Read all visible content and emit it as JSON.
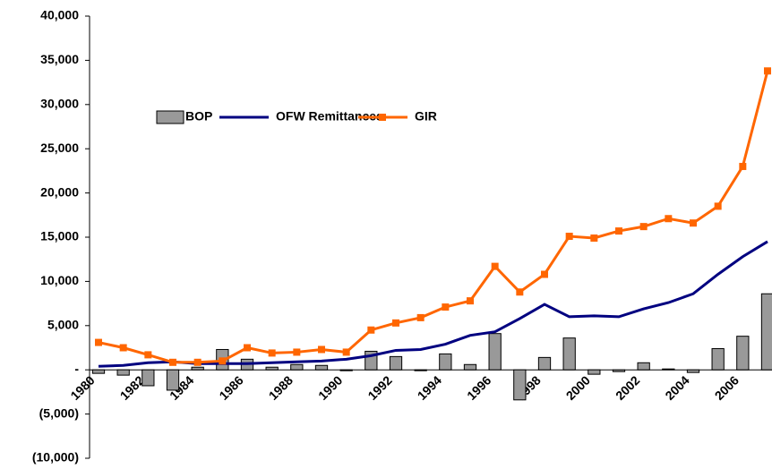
{
  "chart_data": {
    "type": "bar-line",
    "categories": [
      "1980",
      null,
      "1982",
      null,
      "1984",
      null,
      "1986",
      null,
      "1988",
      null,
      "1990",
      null,
      "1992",
      null,
      "1994",
      null,
      "1996",
      null,
      "1998",
      null,
      "2000",
      null,
      "2002",
      null,
      "2004",
      null,
      "2006",
      null
    ],
    "series": [
      {
        "name": "BOP",
        "type": "bar",
        "color": "#999999",
        "values": [
          -400,
          -600,
          -1800,
          -2300,
          300,
          2300,
          1200,
          300,
          600,
          500,
          -100,
          2100,
          1500,
          -100,
          1800,
          600,
          4100,
          -3400,
          1400,
          3600,
          -500,
          -200,
          800,
          100,
          -300,
          2400,
          3800,
          8600
        ]
      },
      {
        "name": "OFW Remittances",
        "type": "line",
        "color": "#000080",
        "values": [
          400,
          500,
          800,
          900,
          700,
          700,
          700,
          800,
          900,
          1000,
          1200,
          1600,
          2200,
          2300,
          2900,
          3900,
          4300,
          5800,
          7400,
          6000,
          6100,
          6000,
          6900,
          7600,
          8600,
          10800,
          12800,
          14500
        ]
      },
      {
        "name": "GIR",
        "type": "line",
        "color": "#ff6600",
        "marker": "square",
        "values": [
          3100,
          2500,
          1700,
          850,
          850,
          1000,
          2500,
          1900,
          2000,
          2300,
          2000,
          4500,
          5300,
          5900,
          7100,
          7800,
          11700,
          8800,
          10800,
          15100,
          14900,
          15700,
          16200,
          17100,
          16600,
          18500,
          23000,
          33800
        ]
      }
    ],
    "ylim": [
      -10000,
      40000
    ],
    "yticks": [
      {
        "value": -10000,
        "label": "(10,000)"
      },
      {
        "value": -5000,
        "label": "(5,000)"
      },
      {
        "value": 0,
        "label": "-"
      },
      {
        "value": 5000,
        "label": "5,000"
      },
      {
        "value": 10000,
        "label": "10,000"
      },
      {
        "value": 15000,
        "label": "15,000"
      },
      {
        "value": 20000,
        "label": "20,000"
      },
      {
        "value": 25000,
        "label": "25,000"
      },
      {
        "value": 30000,
        "label": "30,000"
      },
      {
        "value": 35000,
        "label": "35,000"
      },
      {
        "value": 40000,
        "label": "40,000"
      }
    ]
  }
}
